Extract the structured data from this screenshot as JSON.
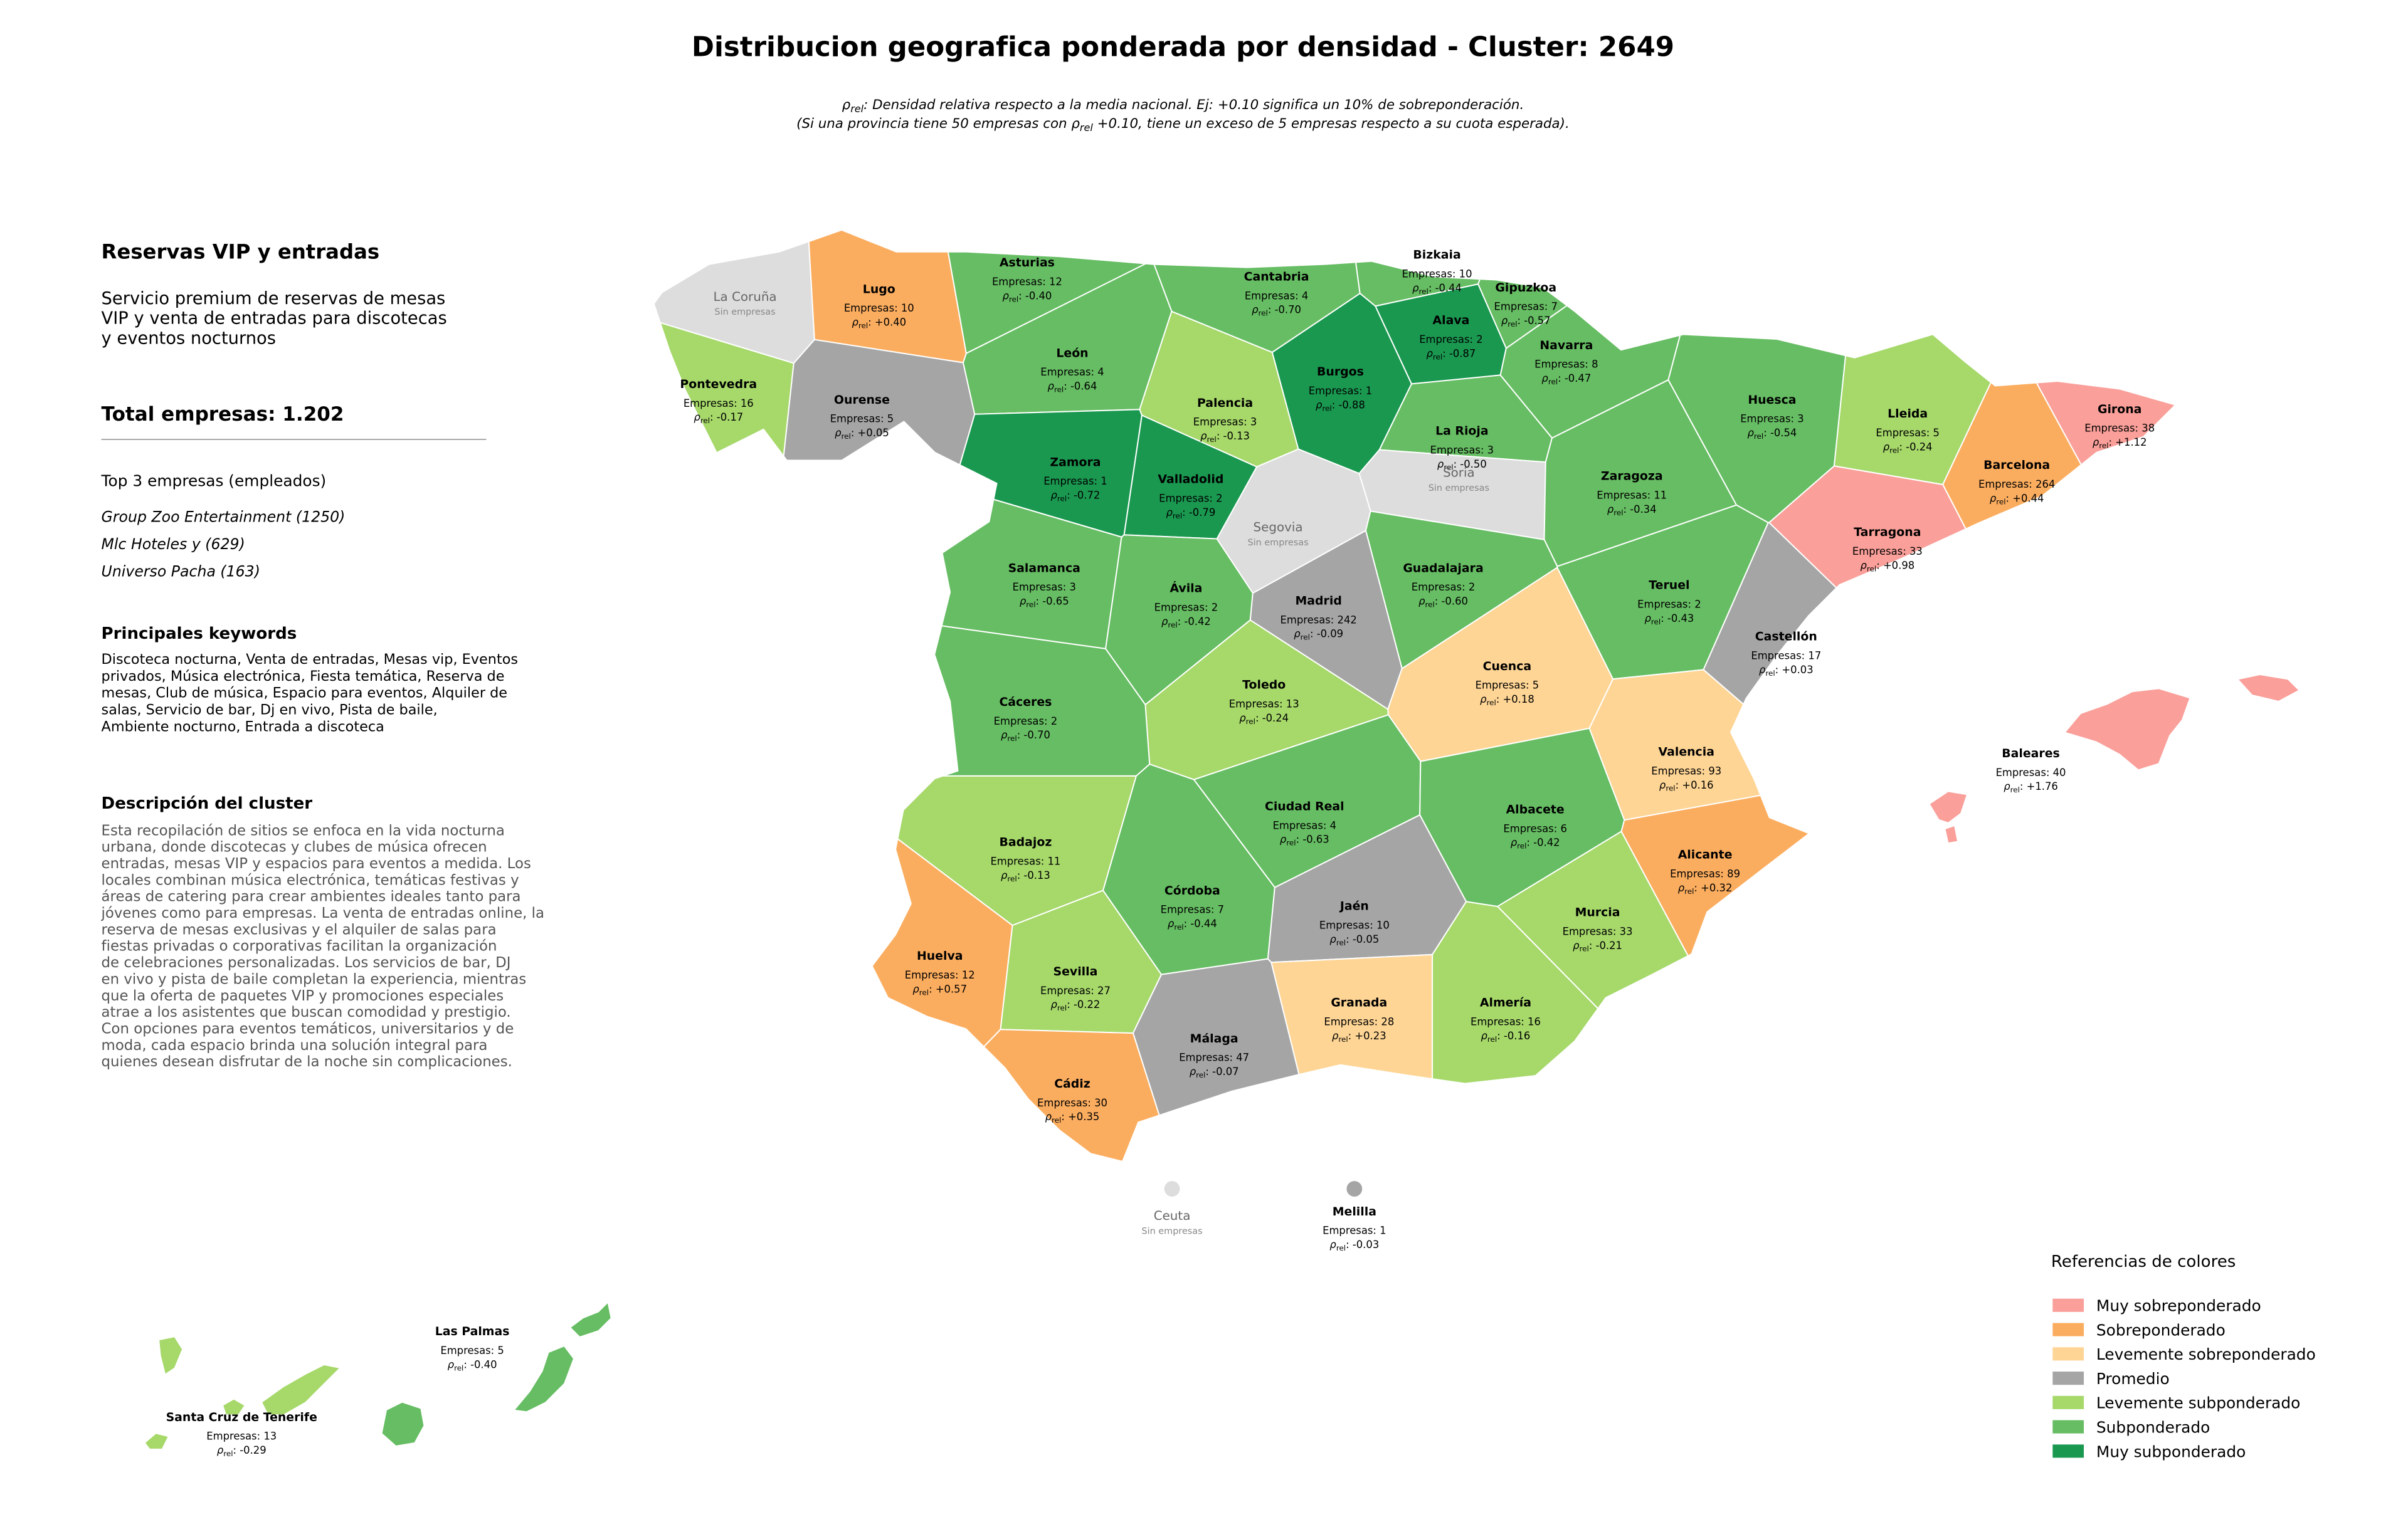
{
  "title": "Distribucion geografica ponderada por densidad - Cluster: 2649",
  "subtitle": [
    [
      {
        "text": "ρ"
      },
      {
        "text": "rel",
        "sub": true
      },
      {
        "text": ": Densidad relativa respecto a la media nacional. Ej: +0.10 significa un 10% de sobreponderación."
      }
    ],
    [
      {
        "text": "(Si una provincia tiene 50 empresas con "
      },
      {
        "text": "ρ"
      },
      {
        "text": "rel",
        "sub": true
      },
      {
        "text": " +0.10, tiene un exceso de 5 empresas respecto a su cuota esperada)."
      }
    ]
  ],
  "panel": {
    "heading": "Reservas VIP y entradas",
    "description": [
      "Servicio premium de reservas de mesas",
      "VIP y venta de entradas para discotecas",
      "y eventos nocturnos"
    ],
    "total": "Total empresas: 1.202",
    "top_title": "Top 3 empresas (empleados)",
    "top": [
      "Group Zoo Entertainment (1250)",
      "Mlc Hoteles y (629)",
      "Universo Pacha (163)"
    ],
    "keywords_title": "Principales keywords",
    "keywords": [
      "Discoteca nocturna, Venta de entradas, Mesas vip, Eventos",
      "privados, Música electrónica, Fiesta temática, Reserva de",
      "mesas, Club de música, Espacio para eventos, Alquiler de",
      "salas, Servicio de bar, Dj en vivo, Pista de baile,",
      "Ambiente nocturno, Entrada a discoteca"
    ],
    "cluster_title": "Descripción del cluster",
    "cluster_text": [
      "Esta recopilación de sitios se enfoca en la vida nocturna",
      "urbana, donde discotecas y clubes de música ofrecen",
      "entradas, mesas VIP y espacios para eventos a medida. Los",
      "locales combinan música electrónica, temáticas festivas y",
      "áreas de catering para crear ambientes ideales tanto para",
      "jóvenes como para empresas. La venta de entradas online, la",
      "reserva de mesas exclusivas y el alquiler de salas para",
      "fiestas privadas o corporativas facilitan la organización",
      "de celebraciones personalizadas. Los servicios de bar, DJ",
      "en vivo y pista de baile completan la experiencia, mientras",
      "que la oferta de paquetes VIP y promociones especiales",
      "atrae a los asistentes que buscan comodidad y prestigio.",
      "Con opciones para eventos temáticos, universitarios y de",
      "moda, cada espacio brinda una solución integral para",
      "quienes desean disfrutar de la noche sin complicaciones."
    ]
  },
  "labels": {
    "empresas_prefix": "Empresas: ",
    "rho_symbol": "ρ",
    "rho_sub": "rel",
    "rho_sep": ": ",
    "sin_empresas": "Sin empresas"
  },
  "provinces": [
    {
      "name": "La Coruña",
      "color": "#dddddd"
    },
    {
      "name": "Lugo",
      "empresas": 10,
      "rho": "+0.40",
      "color": "#fbad5f"
    },
    {
      "name": "Asturias",
      "empresas": 12,
      "rho": "-0.40",
      "color": "#66bd63"
    },
    {
      "name": "Cantabria",
      "empresas": 4,
      "rho": "-0.70",
      "color": "#66bd63"
    },
    {
      "name": "Bizkaia",
      "empresas": 10,
      "rho": "-0.44",
      "color": "#66bd63"
    },
    {
      "name": "Gipuzkoa",
      "empresas": 7,
      "rho": "-0.57",
      "color": "#66bd63"
    },
    {
      "name": "Alava",
      "empresas": 2,
      "rho": "-0.87",
      "color": "#1a9850"
    },
    {
      "name": "Navarra",
      "empresas": 8,
      "rho": "-0.47",
      "color": "#66bd63"
    },
    {
      "name": "Pontevedra",
      "empresas": 16,
      "rho": "-0.17",
      "color": "#a6d86a"
    },
    {
      "name": "Ourense",
      "empresas": 5,
      "rho": "+0.05",
      "color": "#a5a5a5"
    },
    {
      "name": "León",
      "empresas": 4,
      "rho": "-0.64",
      "color": "#66bd63"
    },
    {
      "name": "Palencia",
      "empresas": 3,
      "rho": "-0.13",
      "color": "#a6d86a"
    },
    {
      "name": "Burgos",
      "empresas": 1,
      "rho": "-0.88",
      "color": "#1a9850"
    },
    {
      "name": "La Rioja",
      "empresas": 3,
      "rho": "-0.50",
      "color": "#66bd63"
    },
    {
      "name": "Huesca",
      "empresas": 3,
      "rho": "-0.54",
      "color": "#66bd63"
    },
    {
      "name": "Lleida",
      "empresas": 5,
      "rho": "-0.24",
      "color": "#a6d86a"
    },
    {
      "name": "Girona",
      "empresas": 38,
      "rho": "+1.12",
      "color": "#fa9f99"
    },
    {
      "name": "Zamora",
      "empresas": 1,
      "rho": "-0.72",
      "color": "#1a9850"
    },
    {
      "name": "Valladolid",
      "empresas": 2,
      "rho": "-0.79",
      "color": "#1a9850"
    },
    {
      "name": "Soria",
      "color": "#dddddd"
    },
    {
      "name": "Zaragoza",
      "empresas": 11,
      "rho": "-0.34",
      "color": "#66bd63"
    },
    {
      "name": "Barcelona",
      "empresas": 264,
      "rho": "+0.44",
      "color": "#fbad5f"
    },
    {
      "name": "Segovia",
      "color": "#dddddd"
    },
    {
      "name": "Tarragona",
      "empresas": 33,
      "rho": "+0.98",
      "color": "#fa9f99"
    },
    {
      "name": "Salamanca",
      "empresas": 3,
      "rho": "-0.65",
      "color": "#66bd63"
    },
    {
      "name": "Guadalajara",
      "empresas": 2,
      "rho": "-0.60",
      "color": "#66bd63"
    },
    {
      "name": "Ávila",
      "empresas": 2,
      "rho": "-0.42",
      "color": "#66bd63"
    },
    {
      "name": "Madrid",
      "empresas": 242,
      "rho": "-0.09",
      "color": "#a5a5a5"
    },
    {
      "name": "Teruel",
      "empresas": 2,
      "rho": "-0.43",
      "color": "#66bd63"
    },
    {
      "name": "Castellón",
      "empresas": 17,
      "rho": "+0.03",
      "color": "#a5a5a5"
    },
    {
      "name": "Cuenca",
      "empresas": 5,
      "rho": "+0.18",
      "color": "#fed595"
    },
    {
      "name": "Toledo",
      "empresas": 13,
      "rho": "-0.24",
      "color": "#a6d86a"
    },
    {
      "name": "Cáceres",
      "empresas": 2,
      "rho": "-0.70",
      "color": "#66bd63"
    },
    {
      "name": "Valencia",
      "empresas": 93,
      "rho": "+0.16",
      "color": "#fed595"
    },
    {
      "name": "Baleares",
      "empresas": 40,
      "rho": "+1.76",
      "color": "#fa9f99"
    },
    {
      "name": "Ciudad Real",
      "empresas": 4,
      "rho": "-0.63",
      "color": "#66bd63"
    },
    {
      "name": "Albacete",
      "empresas": 6,
      "rho": "-0.42",
      "color": "#66bd63"
    },
    {
      "name": "Badajoz",
      "empresas": 11,
      "rho": "-0.13",
      "color": "#a6d86a"
    },
    {
      "name": "Alicante",
      "empresas": 89,
      "rho": "+0.32",
      "color": "#fbad5f"
    },
    {
      "name": "Córdoba",
      "empresas": 7,
      "rho": "-0.44",
      "color": "#66bd63"
    },
    {
      "name": "Jaén",
      "empresas": 10,
      "rho": "-0.05",
      "color": "#a5a5a5"
    },
    {
      "name": "Murcia",
      "empresas": 33,
      "rho": "-0.21",
      "color": "#a6d86a"
    },
    {
      "name": "Huelva",
      "empresas": 12,
      "rho": "+0.57",
      "color": "#fbad5f"
    },
    {
      "name": "Sevilla",
      "empresas": 27,
      "rho": "-0.22",
      "color": "#a6d86a"
    },
    {
      "name": "Granada",
      "empresas": 28,
      "rho": "+0.23",
      "color": "#fed595"
    },
    {
      "name": "Almería",
      "empresas": 16,
      "rho": "-0.16",
      "color": "#a6d86a"
    },
    {
      "name": "Málaga",
      "empresas": 47,
      "rho": "-0.07",
      "color": "#a5a5a5"
    },
    {
      "name": "Cádiz",
      "empresas": 30,
      "rho": "+0.35",
      "color": "#fbad5f"
    },
    {
      "name": "Ceuta",
      "color": "#dddddd"
    },
    {
      "name": "Melilla",
      "empresas": 1,
      "rho": "-0.03",
      "color": "#a5a5a5"
    },
    {
      "name": "Las Palmas",
      "empresas": 5,
      "rho": "-0.40",
      "color": "#66bd63"
    },
    {
      "name": "Santa Cruz de Tenerife",
      "empresas": 13,
      "rho": "-0.29",
      "color": "#a6d86a"
    }
  ],
  "legend": {
    "title": "Referencias de colores",
    "items": [
      {
        "label": "Muy sobreponderado",
        "color": "#fa9f99"
      },
      {
        "label": "Sobreponderado",
        "color": "#fbad5f"
      },
      {
        "label": "Levemente sobreponderado",
        "color": "#fed595"
      },
      {
        "label": "Promedio",
        "color": "#a5a5a5"
      },
      {
        "label": "Levemente subponderado",
        "color": "#a6d86a"
      },
      {
        "label": "Subponderado",
        "color": "#66bd63"
      },
      {
        "label": "Muy subponderado",
        "color": "#1a9850"
      }
    ]
  }
}
